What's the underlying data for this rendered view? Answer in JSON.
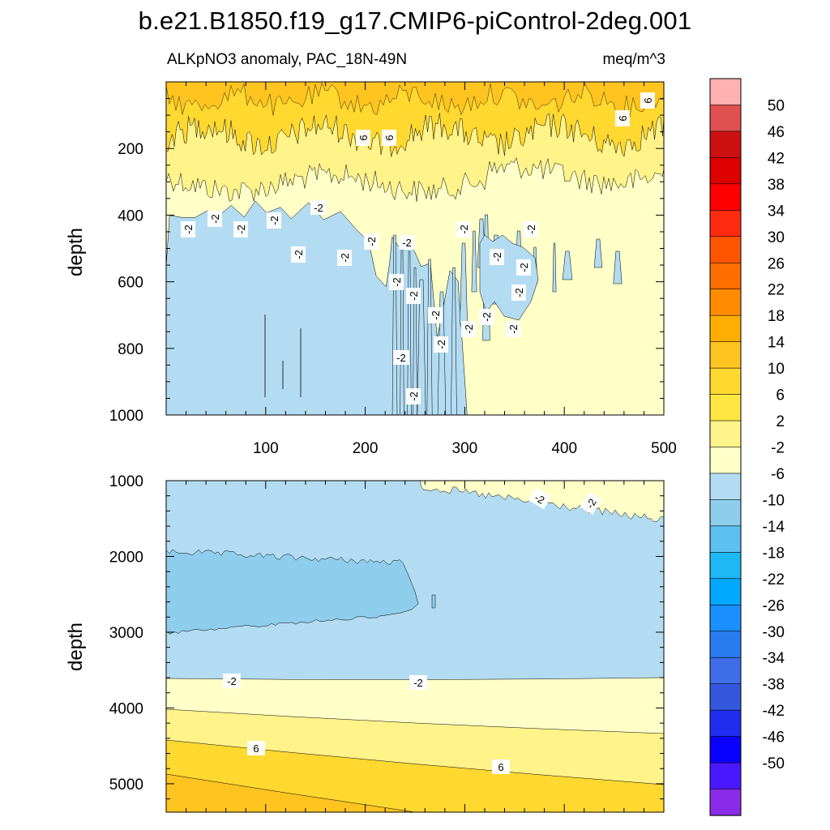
{
  "chart_data": {
    "type": "contour",
    "title": "b.e21.B1850.f19_g17.CMIP6-piControl-2deg.001",
    "subtitle_left": "ALKpNO3 anomaly, PAC_18N-49N",
    "subtitle_right": "meq/m^3",
    "ylabel": "depth",
    "x_range": [
      0,
      500
    ],
    "x_ticks": [
      "100",
      "200",
      "300",
      "400",
      "500"
    ],
    "panels": [
      {
        "name": "upper",
        "y_range": [
          0,
          1000
        ],
        "y_ticks": [
          "200",
          "400",
          "600",
          "800",
          "1000"
        ],
        "contour_labels": [
          "6",
          "6",
          "6",
          "6",
          "-2",
          "-2",
          "-2",
          "-2",
          "-2",
          "-2",
          "-2",
          "-2",
          "-2",
          "-2",
          "-2",
          "-2",
          "-2",
          "-2",
          "-2",
          "-2",
          "-2",
          "-2",
          "-2",
          "-2",
          "-2",
          "-2",
          "-2"
        ]
      },
      {
        "name": "lower",
        "y_range": [
          1000,
          5375
        ],
        "y_ticks": [
          "1000",
          "2000",
          "3000",
          "4000",
          "5000"
        ],
        "contour_labels": [
          "-2",
          "-2",
          "-2",
          "-2",
          "6",
          "6"
        ]
      }
    ],
    "colorbar": {
      "labels": [
        "50",
        "46",
        "42",
        "38",
        "34",
        "30",
        "26",
        "22",
        "18",
        "14",
        "10",
        "6",
        "2",
        "-2",
        "-6",
        "-10",
        "-14",
        "-18",
        "-22",
        "-26",
        "-30",
        "-34",
        "-38",
        "-42",
        "-46",
        "-50"
      ],
      "colors": [
        "#ffb0b0",
        "#e05050",
        "#cc1010",
        "#dd0000",
        "#ff0000",
        "#ff2a10",
        "#ff5500",
        "#ff6e00",
        "#ff8c00",
        "#ffae00",
        "#ffc420",
        "#ffd830",
        "#ffe640",
        "#fff38a",
        "#ffffc8",
        "#b3dcf2",
        "#8ecdec",
        "#5cc1f0",
        "#1db8f5",
        "#00a8ff",
        "#1a90ff",
        "#2a7cf0",
        "#3f6de8",
        "#3357dd",
        "#1f2ef0",
        "#0a00ff",
        "#4a18ff",
        "#8a2be8"
      ]
    },
    "fill_colors": {
      "gt6": "#ffd830",
      "p2_6": "#fff38a",
      "m2_2": "#ffffc8",
      "m6_m2": "#b3dcf2",
      "m10_m6": "#8ecdec",
      "p10_14": "#ffc420"
    }
  }
}
